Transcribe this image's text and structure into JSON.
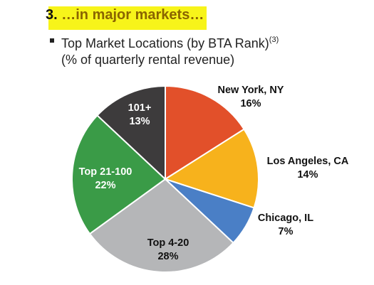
{
  "header": {
    "number": "3.",
    "text": " …in major markets…",
    "highlight_color": "#f7f41a"
  },
  "subtitle": {
    "line1": "Top Market Locations (by BTA Rank)",
    "footnote": "(3)",
    "line2": "(% of quarterly rental revenue)"
  },
  "chart_data": {
    "type": "pie",
    "title": "Top Market Locations (by BTA Rank)",
    "subtitle": "(% of quarterly rental revenue)",
    "unit": "%",
    "start_angle": 0,
    "direction": "clockwise",
    "slices": [
      {
        "label": "New York, NY",
        "value": 16,
        "value_label": "16%",
        "color": "#e2502a",
        "text_color": "#111111"
      },
      {
        "label": "Los Angeles, CA",
        "value": 14,
        "value_label": "14%",
        "color": "#f7b21c",
        "text_color": "#111111"
      },
      {
        "label": "Chicago, IL",
        "value": 7,
        "value_label": "7%",
        "color": "#4a7fc6",
        "text_color": "#111111"
      },
      {
        "label": "Top 4-20",
        "value": 28,
        "value_label": "28%",
        "color": "#b5b6b8",
        "text_color": "#111111"
      },
      {
        "label": "Top 21-100",
        "value": 22,
        "value_label": "22%",
        "color": "#3a9b47",
        "text_color": "#ffffff"
      },
      {
        "label": "101+",
        "value": 13,
        "value_label": "13%",
        "color": "#3d3b3c",
        "text_color": "#ffffff"
      }
    ]
  }
}
